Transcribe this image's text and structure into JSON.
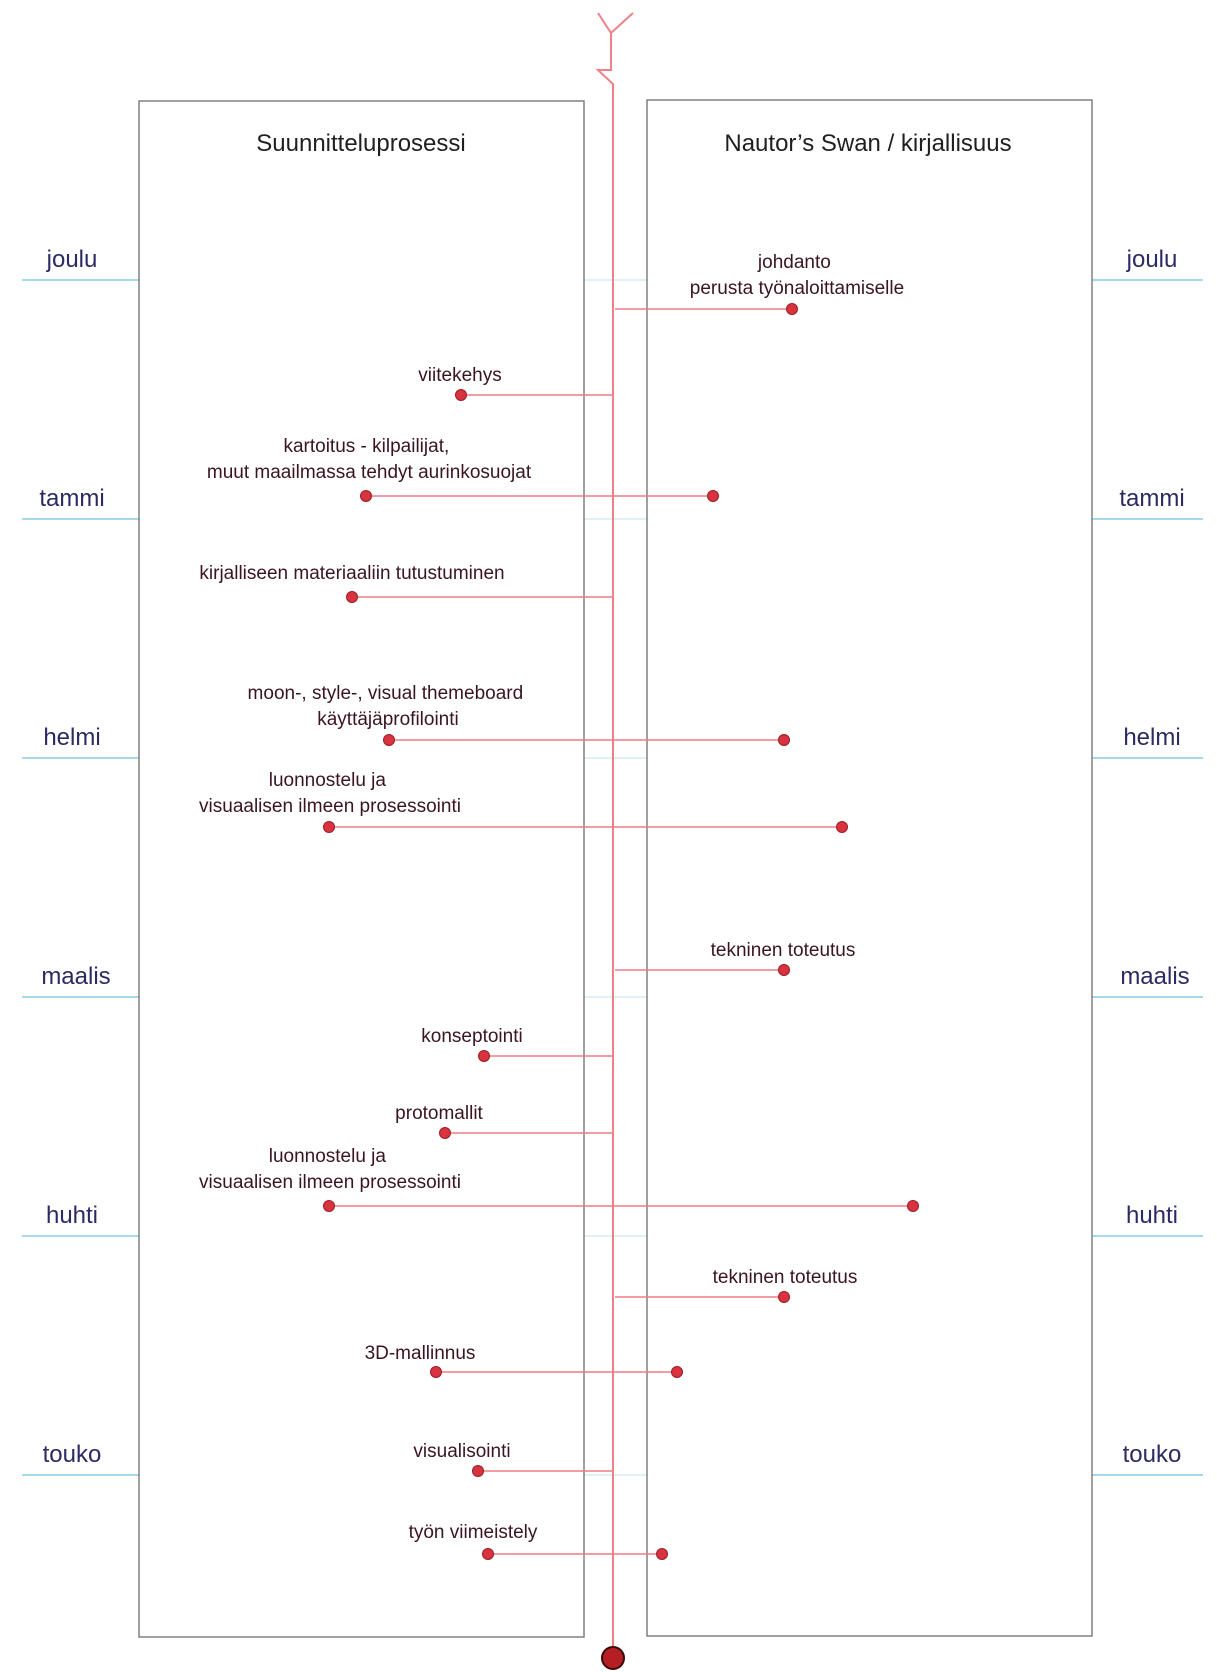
{
  "panels": {
    "left_title": "Suunnitteluprosessi",
    "right_title": "Nautor’s Swan / kirjallisuus"
  },
  "months": [
    "joulu",
    "tammi",
    "helmi",
    "maalis",
    "huhti",
    "touko"
  ],
  "events": [
    {
      "lines": [
        "johdanto",
        "perusta työnaloittamiselle"
      ]
    },
    {
      "lines": [
        "viitekehys"
      ]
    },
    {
      "lines": [
        "kartoitus - kilpailijat,",
        "muut maailmassa tehdyt aurinkosuojat"
      ]
    },
    {
      "lines": [
        "kirjalliseen materiaaliin tutustuminen"
      ]
    },
    {
      "lines": [
        "moon-, style-, visual themeboard",
        "käyttäjäprofilointi"
      ]
    },
    {
      "lines": [
        "luonnostelu ja",
        "visuaalisen ilmeen prosessointi"
      ]
    },
    {
      "lines": [
        "tekninen toteutus"
      ]
    },
    {
      "lines": [
        "konseptointi"
      ]
    },
    {
      "lines": [
        "protomallit"
      ]
    },
    {
      "lines": [
        "luonnostelu ja",
        "visuaalisen ilmeen prosessointi"
      ]
    },
    {
      "lines": [
        "tekninen toteutus"
      ]
    },
    {
      "lines": [
        "3D-mallinnus"
      ]
    },
    {
      "lines": [
        "visualisointi"
      ]
    },
    {
      "lines": [
        "työn viimeistely"
      ]
    }
  ],
  "colors": {
    "timeline": "#f08088",
    "month_line": "#6ec3de",
    "month_text": "#2b2a63",
    "dot": "#d8333f",
    "panel_border": "#777777"
  }
}
